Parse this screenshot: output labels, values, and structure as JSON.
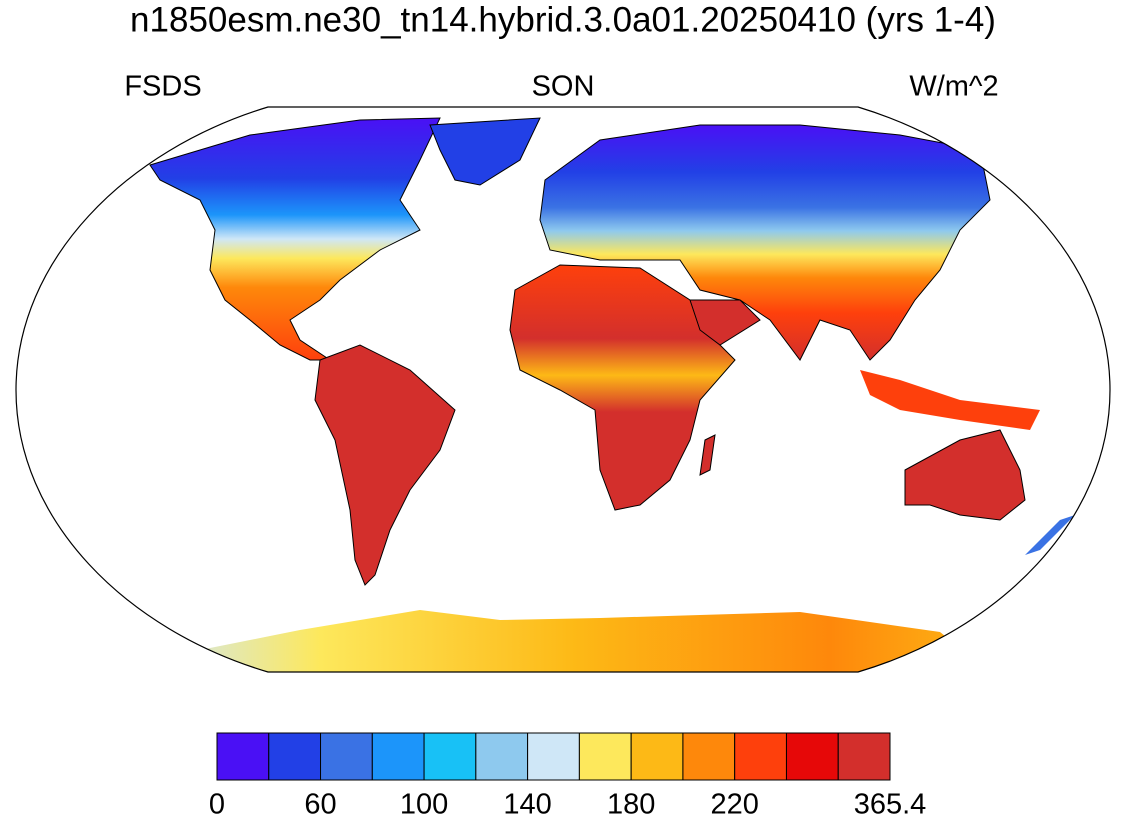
{
  "title": "n1850esm.ne30_tn14.hybrid.3.0a01.20250410 (yrs 1-4)",
  "left_label": "FSDS",
  "center_label": "SON",
  "right_label": "W/m^2",
  "colorbar": {
    "colors": [
      "#4a10f5",
      "#2240e6",
      "#3a72e4",
      "#1c95fa",
      "#18c1f6",
      "#8ec9ee",
      "#cfe7f7",
      "#fde85c",
      "#fdb916",
      "#fe880b",
      "#fe400c",
      "#e60808",
      "#d32f2c"
    ],
    "labels": [
      "0",
      "60",
      "100",
      "140",
      "180",
      "220",
      "365.4"
    ]
  }
}
